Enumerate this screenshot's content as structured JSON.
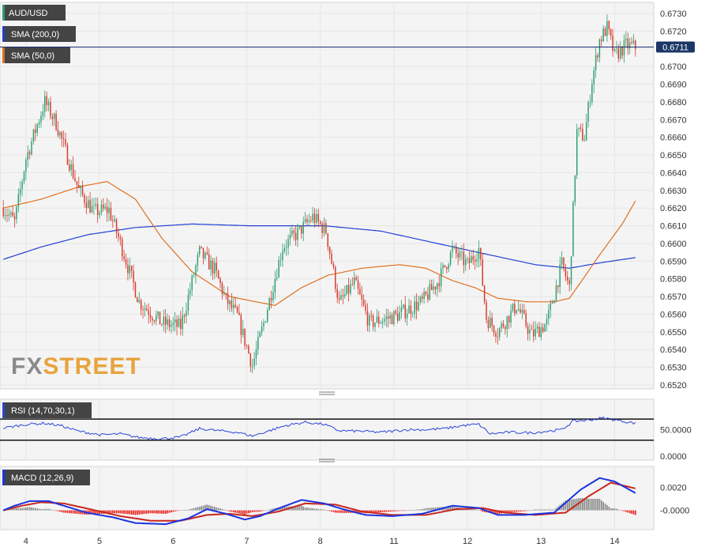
{
  "colors": {
    "up": "#2e9e6e",
    "down": "#d63a2a",
    "sma200": "#1f3fd1",
    "sma50": "#e0701e",
    "rsi": "#2b44d8",
    "macd": "#1b33e0",
    "signal": "#c8281e",
    "hist_pos": "#8a8a8a",
    "hist_neg": "#e8241c",
    "price_line": "#1c2e6e",
    "badge_bg": "#444444",
    "price_badge_bg": "#1c3766",
    "grid": "#e6e6e6",
    "panel_bg": "#f4f4f5"
  },
  "icons": {
    "drag_handle": "drag-handle-icon",
    "logo": "fxstreet-logo"
  },
  "legend": {
    "symbol": "AUD/USD",
    "sma200": "SMA (200,0)",
    "sma50": "SMA (50,0)",
    "rsi": "RSI (14,70,30,1)",
    "macd": "MACD (12,26,9)"
  },
  "logo": {
    "fx": "FX",
    "street": "STREET"
  },
  "chart_data": [
    {
      "type": "candlestick",
      "title": "AUD/USD",
      "ylim": [
        0.6517,
        0.6733
      ],
      "y_ticks": [
        "0.6730",
        "0.6720",
        "0.6710",
        "0.6700",
        "0.6690",
        "0.6680",
        "0.6670",
        "0.6660",
        "0.6650",
        "0.6640",
        "0.6630",
        "0.6620",
        "0.6610",
        "0.6600",
        "0.6590",
        "0.6580",
        "0.6570",
        "0.6560",
        "0.6550",
        "0.6540",
        "0.6530",
        "0.6520"
      ],
      "x_ticks": [
        "4",
        "5",
        "6",
        "7",
        "8",
        "11",
        "12",
        "13",
        "14"
      ],
      "current_price": "0.6711",
      "current_value": 0.6711,
      "grid": true,
      "price_anchors": [
        [
          0,
          0.662
        ],
        [
          6,
          0.6612
        ],
        [
          12,
          0.6648
        ],
        [
          22,
          0.668
        ],
        [
          28,
          0.6668
        ],
        [
          40,
          0.663
        ],
        [
          48,
          0.6618
        ],
        [
          56,
          0.6619
        ],
        [
          63,
          0.6597
        ],
        [
          72,
          0.6567
        ],
        [
          84,
          0.6555
        ],
        [
          94,
          0.6553
        ],
        [
          104,
          0.6595
        ],
        [
          112,
          0.6585
        ],
        [
          118,
          0.6568
        ],
        [
          124,
          0.6559
        ],
        [
          132,
          0.6531
        ],
        [
          138,
          0.6555
        ],
        [
          148,
          0.6598
        ],
        [
          156,
          0.6606
        ],
        [
          164,
          0.6615
        ],
        [
          171,
          0.6607
        ],
        [
          178,
          0.6566
        ],
        [
          186,
          0.6578
        ],
        [
          194,
          0.6555
        ],
        [
          208,
          0.6559
        ],
        [
          222,
          0.6567
        ],
        [
          230,
          0.6578
        ],
        [
          238,
          0.6596
        ],
        [
          246,
          0.6588
        ],
        [
          252,
          0.6597
        ],
        [
          256,
          0.6558
        ],
        [
          262,
          0.655
        ],
        [
          272,
          0.6565
        ],
        [
          280,
          0.6548
        ],
        [
          288,
          0.6555
        ],
        [
          296,
          0.6588
        ],
        [
          300,
          0.6575
        ],
        [
          304,
          0.6663
        ],
        [
          308,
          0.666
        ],
        [
          312,
          0.6692
        ],
        [
          316,
          0.6715
        ],
        [
          320,
          0.6722
        ],
        [
          324,
          0.6706
        ],
        [
          330,
          0.6712
        ],
        [
          335,
          0.6711
        ]
      ],
      "sma50_anchors": [
        [
          0,
          0.662
        ],
        [
          20,
          0.6625
        ],
        [
          40,
          0.6632
        ],
        [
          55,
          0.6635
        ],
        [
          70,
          0.6625
        ],
        [
          84,
          0.6603
        ],
        [
          100,
          0.6584
        ],
        [
          120,
          0.657
        ],
        [
          134,
          0.6567
        ],
        [
          144,
          0.6565
        ],
        [
          158,
          0.6575
        ],
        [
          172,
          0.6582
        ],
        [
          190,
          0.6586
        ],
        [
          210,
          0.6588
        ],
        [
          224,
          0.6586
        ],
        [
          238,
          0.6579
        ],
        [
          250,
          0.6575
        ],
        [
          262,
          0.6569
        ],
        [
          278,
          0.6567
        ],
        [
          292,
          0.6567
        ],
        [
          300,
          0.6569
        ],
        [
          306,
          0.6578
        ],
        [
          315,
          0.6592
        ],
        [
          328,
          0.6611
        ],
        [
          335,
          0.6624
        ]
      ],
      "sma200_anchors": [
        [
          0,
          0.6591
        ],
        [
          20,
          0.6598
        ],
        [
          45,
          0.6605
        ],
        [
          70,
          0.6609
        ],
        [
          100,
          0.6611
        ],
        [
          130,
          0.661
        ],
        [
          170,
          0.661
        ],
        [
          200,
          0.6607
        ],
        [
          230,
          0.66
        ],
        [
          260,
          0.6593
        ],
        [
          282,
          0.6588
        ],
        [
          300,
          0.6586
        ],
        [
          316,
          0.6589
        ],
        [
          335,
          0.6592
        ]
      ]
    },
    {
      "type": "line",
      "title": "RSI (14,70,30,1)",
      "ylim": [
        0,
        100
      ],
      "y_ticks": [
        "50.0000",
        "0.0000"
      ],
      "levels": [
        70,
        30
      ],
      "rsi_anchors": [
        [
          0,
          53
        ],
        [
          12,
          60
        ],
        [
          22,
          62
        ],
        [
          30,
          58
        ],
        [
          40,
          47
        ],
        [
          52,
          40
        ],
        [
          62,
          42
        ],
        [
          72,
          35
        ],
        [
          84,
          33
        ],
        [
          94,
          36
        ],
        [
          104,
          52
        ],
        [
          114,
          48
        ],
        [
          124,
          45
        ],
        [
          132,
          38
        ],
        [
          140,
          47
        ],
        [
          150,
          58
        ],
        [
          160,
          64
        ],
        [
          170,
          60
        ],
        [
          178,
          48
        ],
        [
          190,
          47
        ],
        [
          200,
          45
        ],
        [
          214,
          50
        ],
        [
          224,
          50
        ],
        [
          234,
          52
        ],
        [
          244,
          58
        ],
        [
          252,
          60
        ],
        [
          258,
          42
        ],
        [
          268,
          45
        ],
        [
          280,
          44
        ],
        [
          296,
          50
        ],
        [
          302,
          66
        ],
        [
          310,
          68
        ],
        [
          318,
          72
        ],
        [
          325,
          68
        ],
        [
          335,
          62
        ]
      ]
    },
    {
      "type": "line",
      "title": "MACD (12,26,9)",
      "ylim": [
        -0.0014,
        0.0036
      ],
      "y_ticks": [
        "0.0020",
        "-0.0000"
      ],
      "macd_anchors": [
        [
          0,
          0
        ],
        [
          6,
          0.0004
        ],
        [
          14,
          0.0008
        ],
        [
          24,
          0.0008
        ],
        [
          34,
          0.0003
        ],
        [
          44,
          -0.0002
        ],
        [
          58,
          -0.0006
        ],
        [
          70,
          -0.0011
        ],
        [
          86,
          -0.0012
        ],
        [
          98,
          -0.0007
        ],
        [
          108,
          0.0001
        ],
        [
          118,
          -0.0003
        ],
        [
          128,
          -0.0008
        ],
        [
          136,
          -0.0005
        ],
        [
          148,
          0.0003
        ],
        [
          158,
          0.0009
        ],
        [
          170,
          0.0006
        ],
        [
          180,
          0.0001
        ],
        [
          192,
          -0.0004
        ],
        [
          206,
          -0.0005
        ],
        [
          222,
          -0.0003
        ],
        [
          238,
          0.0004
        ],
        [
          252,
          0.0002
        ],
        [
          262,
          -0.0004
        ],
        [
          276,
          -0.0004
        ],
        [
          292,
          -0.0002
        ],
        [
          306,
          0.0018
        ],
        [
          316,
          0.0028
        ],
        [
          324,
          0.0025
        ],
        [
          335,
          0.0015
        ]
      ],
      "signal_anchors": [
        [
          0,
          0
        ],
        [
          10,
          0.0004
        ],
        [
          20,
          0.0007
        ],
        [
          32,
          0.0006
        ],
        [
          46,
          0.0001
        ],
        [
          62,
          -0.0005
        ],
        [
          78,
          -0.0009
        ],
        [
          94,
          -0.0009
        ],
        [
          108,
          -0.0004
        ],
        [
          120,
          -0.0003
        ],
        [
          132,
          -0.0005
        ],
        [
          146,
          -0.0001
        ],
        [
          160,
          0.0006
        ],
        [
          176,
          0.0005
        ],
        [
          190,
          -0.0001
        ],
        [
          206,
          -0.0004
        ],
        [
          224,
          -0.0004
        ],
        [
          240,
          0.0001
        ],
        [
          254,
          0.0002
        ],
        [
          266,
          -0.0002
        ],
        [
          282,
          -0.0004
        ],
        [
          298,
          -0.0002
        ],
        [
          310,
          0.0012
        ],
        [
          322,
          0.0024
        ],
        [
          335,
          0.0019
        ]
      ]
    }
  ]
}
